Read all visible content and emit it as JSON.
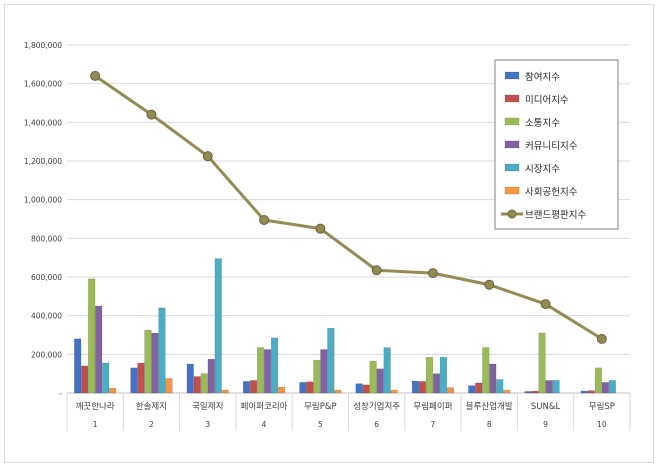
{
  "chart_data": {
    "type": "bar",
    "title": "",
    "xlabel": "",
    "ylabel": "",
    "ylim": [
      0,
      1800000
    ],
    "yticks": [
      0,
      200000,
      400000,
      600000,
      800000,
      1000000,
      1200000,
      1400000,
      1600000,
      1800000
    ],
    "ytick_labels": [
      "-",
      "200,000",
      "400,000",
      "600,000",
      "800,000",
      "1,000,000",
      "1,200,000",
      "1,400,000",
      "1,600,000",
      "1,800,000"
    ],
    "grid": true,
    "legend_position": "top-right",
    "categories": [
      "깨끗한나라",
      "한솔제지",
      "국일제지",
      "페이퍼코리아",
      "무림P&P",
      "성창기업지주",
      "무림페이퍼",
      "블루산업개발",
      "SUN&L",
      "무림SP"
    ],
    "ranks": [
      "1",
      "2",
      "3",
      "4",
      "5",
      "6",
      "7",
      "8",
      "9",
      "10"
    ],
    "series": [
      {
        "name": "참여지수",
        "kind": "bar",
        "color": "#4472c4",
        "values": [
          280000,
          130000,
          150000,
          60000,
          55000,
          48000,
          62000,
          38000,
          8000,
          10000
        ]
      },
      {
        "name": "미디어지수",
        "kind": "bar",
        "color": "#c0504d",
        "values": [
          140000,
          155000,
          85000,
          65000,
          58000,
          42000,
          60000,
          52000,
          10000,
          12000
        ]
      },
      {
        "name": "소통지수",
        "kind": "bar",
        "color": "#9bbb59",
        "values": [
          590000,
          325000,
          100000,
          235000,
          170000,
          165000,
          185000,
          235000,
          310000,
          130000
        ]
      },
      {
        "name": "커뮤니티지수",
        "kind": "bar",
        "color": "#8064a2",
        "values": [
          450000,
          310000,
          175000,
          225000,
          225000,
          125000,
          100000,
          150000,
          65000,
          55000
        ]
      },
      {
        "name": "시장지수",
        "kind": "bar",
        "color": "#4bacc6",
        "values": [
          155000,
          440000,
          695000,
          285000,
          335000,
          235000,
          185000,
          70000,
          65000,
          65000
        ]
      },
      {
        "name": "사회공헌지수",
        "kind": "bar",
        "color": "#f79646",
        "values": [
          25000,
          75000,
          15000,
          30000,
          15000,
          15000,
          28000,
          15000,
          0,
          0
        ]
      },
      {
        "name": "브랜드평판지수",
        "kind": "line",
        "color": "#948a54",
        "values": [
          1640000,
          1440000,
          1225000,
          895000,
          850000,
          635000,
          620000,
          560000,
          460000,
          280000
        ]
      }
    ]
  }
}
